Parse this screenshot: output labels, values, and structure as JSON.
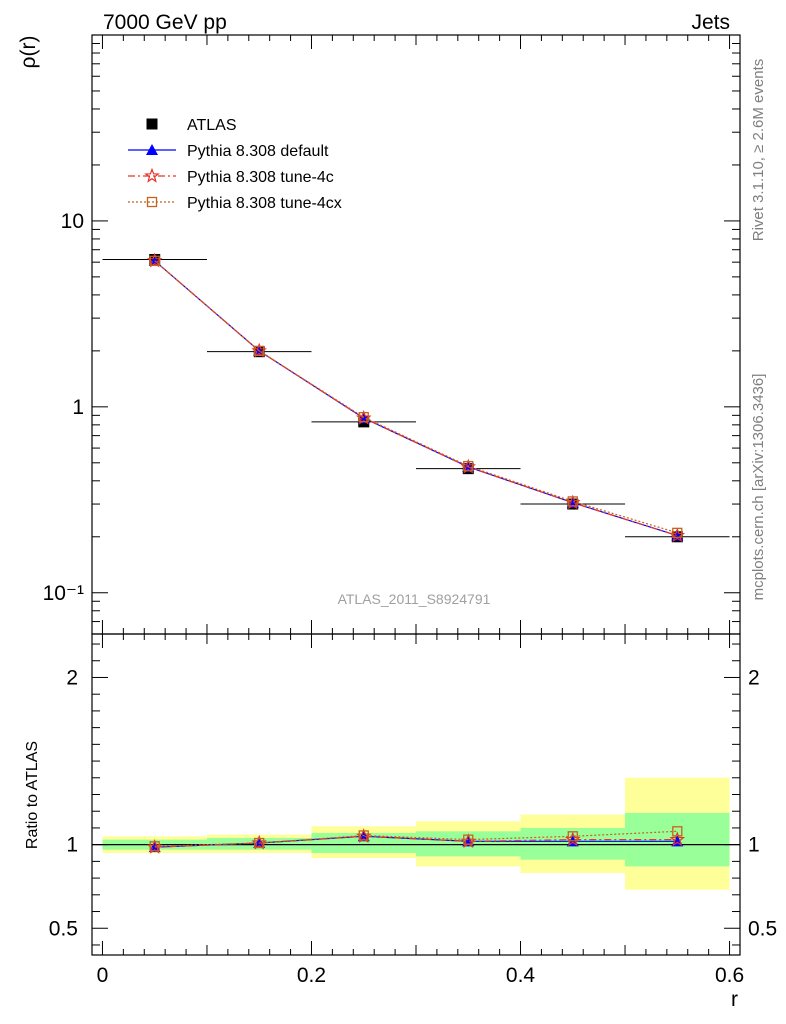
{
  "header": {
    "left": "7000 GeV pp",
    "right": "Jets"
  },
  "side_text": {
    "top": "Rivet 3.1.10, ≥ 2.6M events",
    "bottom": "mcplots.cern.ch [arXiv:1306.3436]"
  },
  "watermark": "ATLAS_2011_S8924791",
  "chart_data": [
    {
      "type": "line",
      "panel": "main",
      "ylabel": "ρ(r)",
      "yscale": "log",
      "xlim": [
        -0.01,
        0.61
      ],
      "ylim": [
        0.06,
        100
      ],
      "y_tick_labels": [
        "10⁻¹",
        "1",
        "10"
      ],
      "legend": {
        "placement": "top-left",
        "entries": [
          "ATLAS",
          "Pythia 8.308 default",
          "Pythia 8.308 tune-4c",
          "Pythia 8.308 tune-4cx"
        ]
      },
      "x": [
        0.05,
        0.15,
        0.25,
        0.35,
        0.45,
        0.55
      ],
      "series": [
        {
          "name": "ATLAS",
          "color": "#000000",
          "marker": "square",
          "values": [
            6.2,
            1.98,
            0.83,
            0.465,
            0.3,
            0.2
          ]
        },
        {
          "name": "Pythia 8.308 default",
          "color": "#0000ff",
          "marker": "triangle",
          "values": [
            6.1,
            2.0,
            0.87,
            0.475,
            0.305,
            0.203
          ]
        },
        {
          "name": "Pythia 8.308 tune-4c",
          "color": "#e8322a",
          "marker": "star",
          "values": [
            6.1,
            2.0,
            0.87,
            0.475,
            0.305,
            0.203
          ]
        },
        {
          "name": "Pythia 8.308 tune-4cx",
          "color": "#c8621e",
          "marker": "open-square",
          "values": [
            6.1,
            2.0,
            0.88,
            0.48,
            0.31,
            0.21
          ]
        }
      ]
    },
    {
      "type": "line",
      "panel": "ratio",
      "ylabel": "Ratio to ATLAS",
      "xlabel": "r",
      "xlim": [
        -0.01,
        0.61
      ],
      "ylim": [
        0.34,
        2.26
      ],
      "x_tick_labels": [
        "0",
        "0.2",
        "0.4",
        "0.6"
      ],
      "y_tick_labels": [
        "0.5",
        "1",
        "2"
      ],
      "bands": {
        "edges": [
          0.0,
          0.1,
          0.2,
          0.3,
          0.4,
          0.5,
          0.6
        ],
        "yellow": [
          [
            0.95,
            1.05
          ],
          [
            0.95,
            1.06
          ],
          [
            0.92,
            1.11
          ],
          [
            0.87,
            1.14
          ],
          [
            0.83,
            1.18
          ],
          [
            0.73,
            1.4
          ]
        ],
        "green": [
          [
            0.97,
            1.03
          ],
          [
            0.97,
            1.04
          ],
          [
            0.95,
            1.07
          ],
          [
            0.93,
            1.08
          ],
          [
            0.91,
            1.1
          ],
          [
            0.87,
            1.19
          ]
        ]
      },
      "x": [
        0.05,
        0.15,
        0.25,
        0.35,
        0.45,
        0.55
      ],
      "series": [
        {
          "name": "Pythia 8.308 default",
          "color": "#0000ff",
          "marker": "triangle",
          "values": [
            0.985,
            1.01,
            1.05,
            1.02,
            1.02,
            1.02
          ]
        },
        {
          "name": "Pythia 8.308 tune-4c",
          "color": "#e8322a",
          "marker": "star",
          "values": [
            0.985,
            1.01,
            1.05,
            1.02,
            1.03,
            1.03
          ]
        },
        {
          "name": "Pythia 8.308 tune-4cx",
          "color": "#c8621e",
          "marker": "open-square",
          "values": [
            0.99,
            1.01,
            1.055,
            1.03,
            1.05,
            1.08
          ]
        }
      ]
    }
  ]
}
